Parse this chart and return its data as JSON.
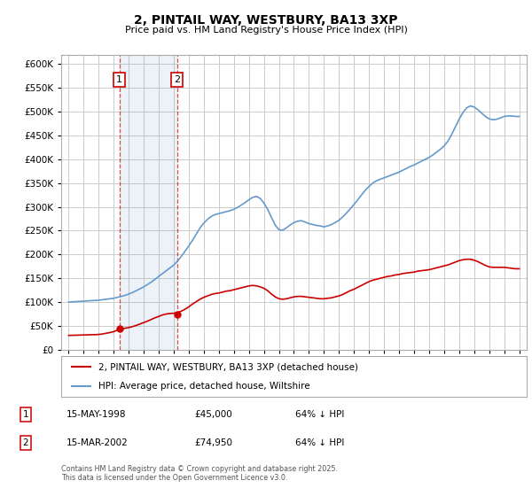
{
  "title": "2, PINTAIL WAY, WESTBURY, BA13 3XP",
  "subtitle": "Price paid vs. HM Land Registry's House Price Index (HPI)",
  "footnote": "Contains HM Land Registry data © Crown copyright and database right 2025.\nThis data is licensed under the Open Government Licence v3.0.",
  "legend_label_red": "2, PINTAIL WAY, WESTBURY, BA13 3XP (detached house)",
  "legend_label_blue": "HPI: Average price, detached house, Wiltshire",
  "purchases": [
    {
      "label": "1",
      "date": "15-MAY-1998",
      "price": "£45,000",
      "note": "64% ↓ HPI"
    },
    {
      "label": "2",
      "date": "15-MAR-2002",
      "price": "£74,950",
      "note": "64% ↓ HPI"
    }
  ],
  "purchase_years": [
    1998.38,
    2002.21
  ],
  "purchase_prices": [
    45000,
    74950
  ],
  "red_color": "#cc0000",
  "blue_color": "#6699cc",
  "vline_color": "#cc0000",
  "background_color": "#ffffff",
  "grid_color": "#cccccc",
  "ylim": [
    0,
    620000
  ],
  "yticks": [
    0,
    50000,
    100000,
    150000,
    200000,
    250000,
    300000,
    350000,
    400000,
    450000,
    500000,
    550000,
    600000
  ],
  "xlim_start": 1994.5,
  "xlim_end": 2025.5,
  "hpi_years": [
    1995,
    1995.25,
    1995.5,
    1995.75,
    1996,
    1996.25,
    1996.5,
    1996.75,
    1997,
    1997.25,
    1997.5,
    1997.75,
    1998,
    1998.25,
    1998.5,
    1998.75,
    1999,
    1999.25,
    1999.5,
    1999.75,
    2000,
    2000.25,
    2000.5,
    2000.75,
    2001,
    2001.25,
    2001.5,
    2001.75,
    2002,
    2002.25,
    2002.5,
    2002.75,
    2003,
    2003.25,
    2003.5,
    2003.75,
    2004,
    2004.25,
    2004.5,
    2004.75,
    2005,
    2005.25,
    2005.5,
    2005.75,
    2006,
    2006.25,
    2006.5,
    2006.75,
    2007,
    2007.25,
    2007.5,
    2007.75,
    2008,
    2008.25,
    2008.5,
    2008.75,
    2009,
    2009.25,
    2009.5,
    2009.75,
    2010,
    2010.25,
    2010.5,
    2010.75,
    2011,
    2011.25,
    2011.5,
    2011.75,
    2012,
    2012.25,
    2012.5,
    2012.75,
    2013,
    2013.25,
    2013.5,
    2013.75,
    2014,
    2014.25,
    2014.5,
    2014.75,
    2015,
    2015.25,
    2015.5,
    2015.75,
    2016,
    2016.25,
    2016.5,
    2016.75,
    2017,
    2017.25,
    2017.5,
    2017.75,
    2018,
    2018.25,
    2018.5,
    2018.75,
    2019,
    2019.25,
    2019.5,
    2019.75,
    2020,
    2020.25,
    2020.5,
    2020.75,
    2021,
    2021.25,
    2021.5,
    2021.75,
    2022,
    2022.25,
    2022.5,
    2022.75,
    2023,
    2023.25,
    2023.5,
    2023.75,
    2024,
    2024.25,
    2024.5,
    2024.75,
    2025
  ],
  "hpi_values": [
    100000,
    100500,
    101000,
    101500,
    102000,
    102500,
    103000,
    103500,
    104000,
    105000,
    106000,
    107000,
    108000,
    110000,
    112000,
    114000,
    117000,
    120000,
    124000,
    128000,
    132000,
    137000,
    142000,
    148000,
    154000,
    160000,
    166000,
    172000,
    178000,
    186000,
    196000,
    207000,
    218000,
    230000,
    243000,
    256000,
    266000,
    274000,
    280000,
    284000,
    286000,
    288000,
    290000,
    292000,
    295000,
    299000,
    304000,
    309000,
    315000,
    320000,
    322000,
    318000,
    308000,
    295000,
    278000,
    262000,
    252000,
    251000,
    256000,
    262000,
    267000,
    270000,
    271000,
    268000,
    265000,
    263000,
    261000,
    260000,
    258000,
    260000,
    263000,
    267000,
    272000,
    279000,
    287000,
    296000,
    305000,
    315000,
    325000,
    335000,
    343000,
    350000,
    355000,
    358000,
    361000,
    364000,
    367000,
    370000,
    373000,
    377000,
    381000,
    385000,
    388000,
    392000,
    396000,
    400000,
    404000,
    409000,
    415000,
    421000,
    428000,
    438000,
    452000,
    468000,
    484000,
    498000,
    508000,
    512000,
    510000,
    504000,
    497000,
    490000,
    485000,
    483000,
    484000,
    487000,
    490000,
    491000,
    491000,
    490000,
    490000
  ],
  "red_years": [
    1995,
    1995.25,
    1995.5,
    1995.75,
    1996,
    1996.25,
    1996.5,
    1996.75,
    1997,
    1997.25,
    1997.5,
    1997.75,
    1998,
    1998.25,
    1998.5,
    1998.75,
    1999,
    1999.25,
    1999.5,
    1999.75,
    2000,
    2000.25,
    2000.5,
    2000.75,
    2001,
    2001.25,
    2001.5,
    2001.75,
    2002,
    2002.25,
    2002.5,
    2002.75,
    2003,
    2003.25,
    2003.5,
    2003.75,
    2004,
    2004.25,
    2004.5,
    2004.75,
    2005,
    2005.25,
    2005.5,
    2005.75,
    2006,
    2006.25,
    2006.5,
    2006.75,
    2007,
    2007.25,
    2007.5,
    2007.75,
    2008,
    2008.25,
    2008.5,
    2008.75,
    2009,
    2009.25,
    2009.5,
    2009.75,
    2010,
    2010.25,
    2010.5,
    2010.75,
    2011,
    2011.25,
    2011.5,
    2011.75,
    2012,
    2012.25,
    2012.5,
    2012.75,
    2013,
    2013.25,
    2013.5,
    2013.75,
    2014,
    2014.25,
    2014.5,
    2014.75,
    2015,
    2015.25,
    2015.5,
    2015.75,
    2016,
    2016.25,
    2016.5,
    2016.75,
    2017,
    2017.25,
    2017.5,
    2017.75,
    2018,
    2018.25,
    2018.5,
    2018.75,
    2019,
    2019.25,
    2019.5,
    2019.75,
    2020,
    2020.25,
    2020.5,
    2020.75,
    2021,
    2021.25,
    2021.5,
    2021.75,
    2022,
    2022.25,
    2022.5,
    2022.75,
    2023,
    2023.25,
    2023.5,
    2023.75,
    2024,
    2024.25,
    2024.5,
    2024.75,
    2025
  ],
  "red_values": [
    30000,
    30200,
    30400,
    30600,
    31000,
    31200,
    31400,
    31600,
    32000,
    33000,
    34500,
    36000,
    38000,
    41000,
    43500,
    45000,
    46500,
    48500,
    51000,
    54000,
    57000,
    60000,
    63500,
    67000,
    70000,
    73000,
    75000,
    76000,
    76500,
    78000,
    81000,
    85000,
    90000,
    96000,
    101000,
    106000,
    110000,
    113000,
    116000,
    118000,
    119000,
    121000,
    123000,
    124000,
    126000,
    128000,
    130000,
    132000,
    134000,
    135000,
    134000,
    132000,
    129000,
    124000,
    117000,
    111000,
    107000,
    106000,
    107000,
    109000,
    111000,
    112000,
    112000,
    111000,
    110000,
    109000,
    108000,
    107000,
    107000,
    108000,
    109000,
    111000,
    113000,
    116000,
    120000,
    124000,
    127000,
    131000,
    135000,
    139000,
    143000,
    146000,
    148000,
    150000,
    152000,
    154000,
    155000,
    157000,
    158000,
    160000,
    161000,
    162000,
    163000,
    165000,
    166000,
    167000,
    168000,
    170000,
    172000,
    174000,
    176000,
    178000,
    181000,
    184000,
    187000,
    189000,
    190000,
    190000,
    188000,
    185000,
    181000,
    177000,
    174000,
    173000,
    173000,
    173000,
    173000,
    172000,
    171000,
    170000,
    170000
  ]
}
